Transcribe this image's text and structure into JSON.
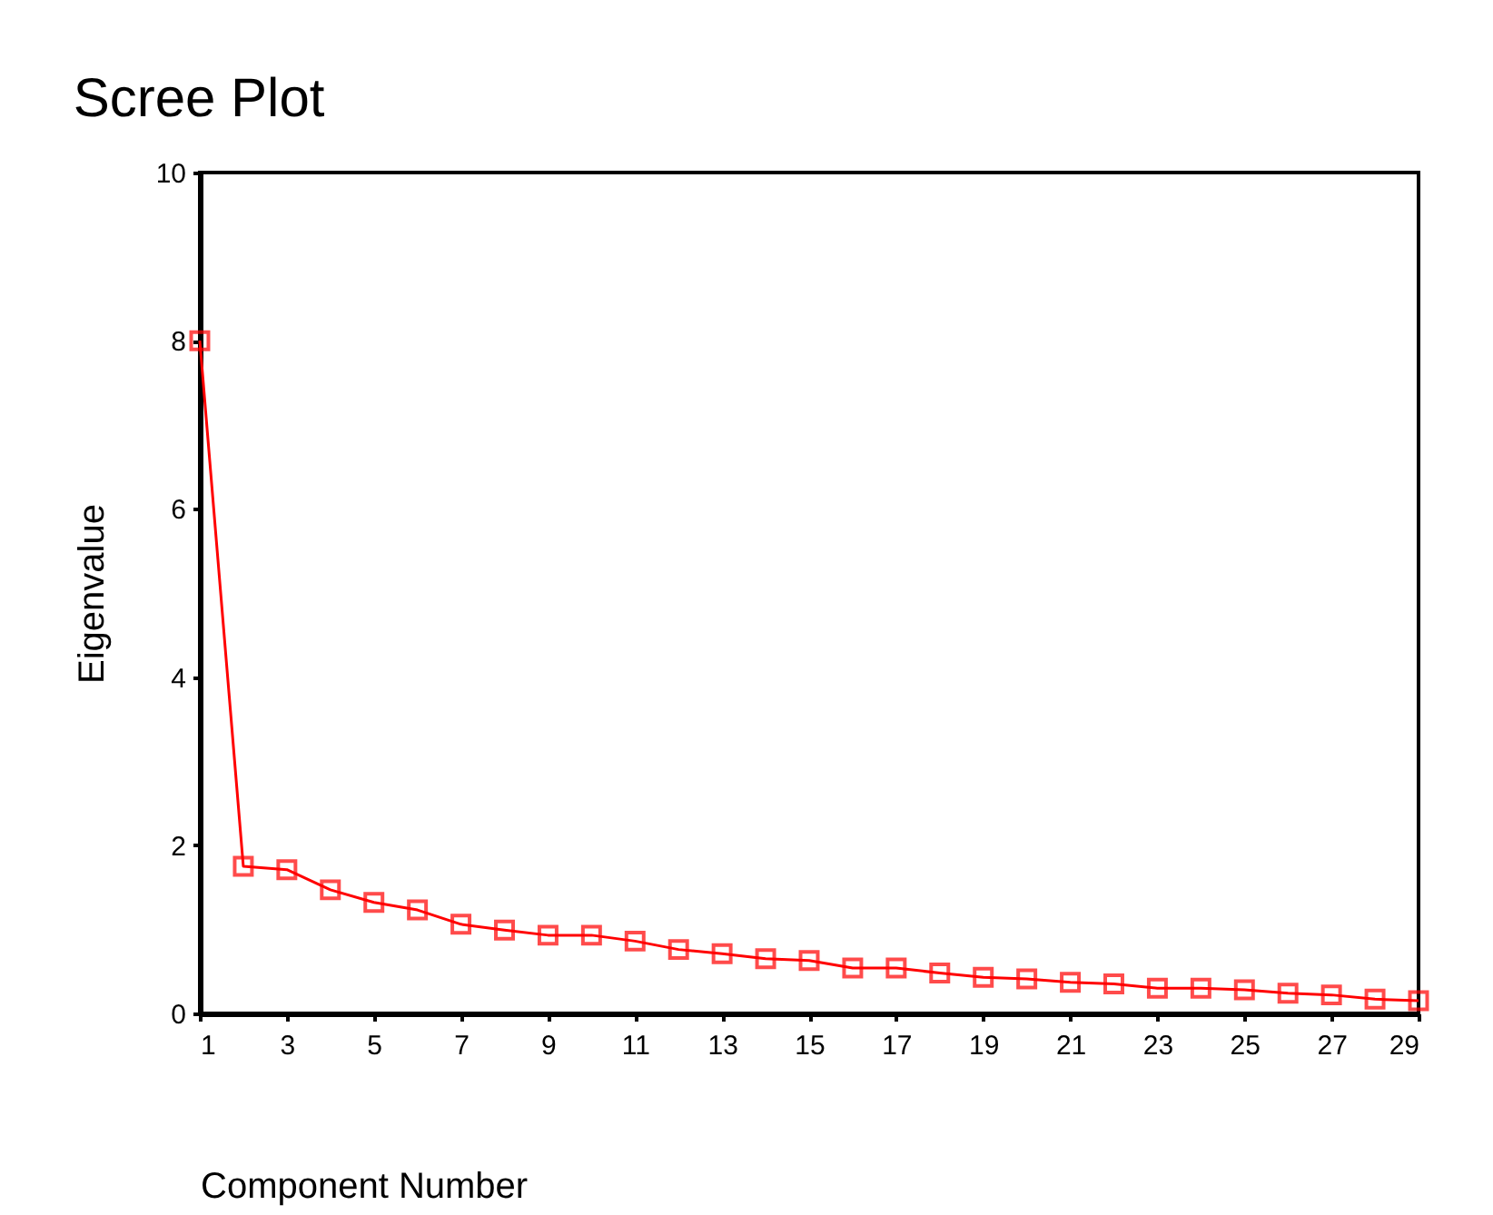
{
  "chart_data": {
    "type": "line",
    "title": "Scree Plot",
    "xlabel": "Component Number",
    "ylabel": "Eigenvalue",
    "x": [
      1,
      2,
      3,
      4,
      5,
      6,
      7,
      8,
      9,
      10,
      11,
      12,
      13,
      14,
      15,
      16,
      17,
      18,
      19,
      20,
      21,
      22,
      23,
      24,
      25,
      26,
      27,
      28,
      29
    ],
    "series": [
      {
        "color": "#ff0000",
        "values": [
          8.0,
          1.75,
          1.71,
          1.47,
          1.32,
          1.23,
          1.06,
          0.99,
          0.93,
          0.93,
          0.86,
          0.76,
          0.71,
          0.65,
          0.63,
          0.54,
          0.54,
          0.48,
          0.43,
          0.41,
          0.37,
          0.35,
          0.3,
          0.3,
          0.28,
          0.24,
          0.22,
          0.17,
          0.15
        ]
      }
    ],
    "xlim": [
      1,
      29
    ],
    "xticks": [
      1,
      3,
      5,
      7,
      9,
      11,
      13,
      15,
      17,
      19,
      21,
      23,
      25,
      27,
      29
    ],
    "ylim": [
      0,
      10
    ],
    "yticks": [
      0,
      2,
      4,
      6,
      8,
      10
    ],
    "grid": false,
    "legend": false,
    "marker": "square",
    "line_style": "solid"
  }
}
